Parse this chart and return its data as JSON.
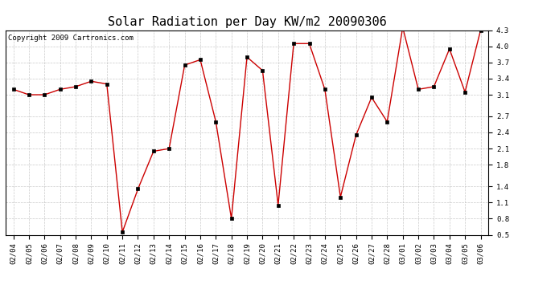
{
  "title": "Solar Radiation per Day KW/m2 20090306",
  "copyright_text": "Copyright 2009 Cartronics.com",
  "dates": [
    "02/04",
    "02/05",
    "02/06",
    "02/07",
    "02/08",
    "02/09",
    "02/10",
    "02/11",
    "02/12",
    "02/13",
    "02/14",
    "02/15",
    "02/16",
    "02/17",
    "02/18",
    "02/19",
    "02/20",
    "02/21",
    "02/22",
    "02/23",
    "02/24",
    "02/25",
    "02/26",
    "02/27",
    "02/28",
    "03/01",
    "03/02",
    "03/03",
    "03/04",
    "03/05",
    "03/06"
  ],
  "values": [
    3.2,
    3.1,
    3.1,
    3.2,
    3.25,
    3.35,
    3.3,
    0.55,
    1.35,
    2.05,
    2.1,
    3.65,
    3.75,
    2.6,
    0.8,
    3.8,
    3.55,
    1.05,
    4.05,
    4.05,
    3.2,
    1.2,
    2.35,
    3.05,
    2.6,
    4.35,
    3.2,
    3.25,
    3.95,
    3.15,
    4.3
  ],
  "line_color": "#cc0000",
  "marker_color": "#000000",
  "bg_color": "#ffffff",
  "plot_bg_color": "#ffffff",
  "grid_color": "#bbbbbb",
  "ylim": [
    0.5,
    4.3
  ],
  "yticks": [
    0.5,
    0.8,
    1.1,
    1.4,
    1.8,
    2.1,
    2.4,
    2.7,
    3.1,
    3.4,
    3.7,
    4.0,
    4.3
  ],
  "title_fontsize": 11,
  "copyright_fontsize": 6.5,
  "tick_fontsize": 6.5
}
